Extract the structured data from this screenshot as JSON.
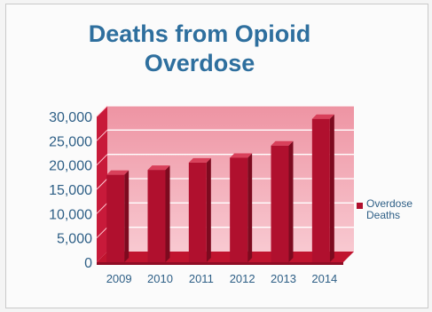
{
  "chart_data": {
    "type": "bar",
    "title": "Deaths from Opioid Overdose",
    "categories": [
      "2009",
      "2010",
      "2011",
      "2012",
      "2013",
      "2014"
    ],
    "series": [
      {
        "name": "Overdose Deaths",
        "values": [
          18000,
          19000,
          20500,
          21500,
          24000,
          29500
        ]
      }
    ],
    "ylim": [
      0,
      30000
    ],
    "yticks": [
      "0",
      "5,000",
      "10,000",
      "15,000",
      "20,000",
      "25,000",
      "30,000"
    ],
    "ytick_values": [
      0,
      5000,
      10000,
      15000,
      20000,
      25000,
      30000
    ],
    "legend_position": "right",
    "grid": true,
    "colors": {
      "bar_front": "#b0102e",
      "bar_side": "#7d0a1f",
      "bar_top": "#d8405a",
      "back_wall": "#f2a6b3",
      "floor": "#c0142f",
      "title": "#2e6f9e",
      "axis_text": "#2e5f86"
    }
  }
}
